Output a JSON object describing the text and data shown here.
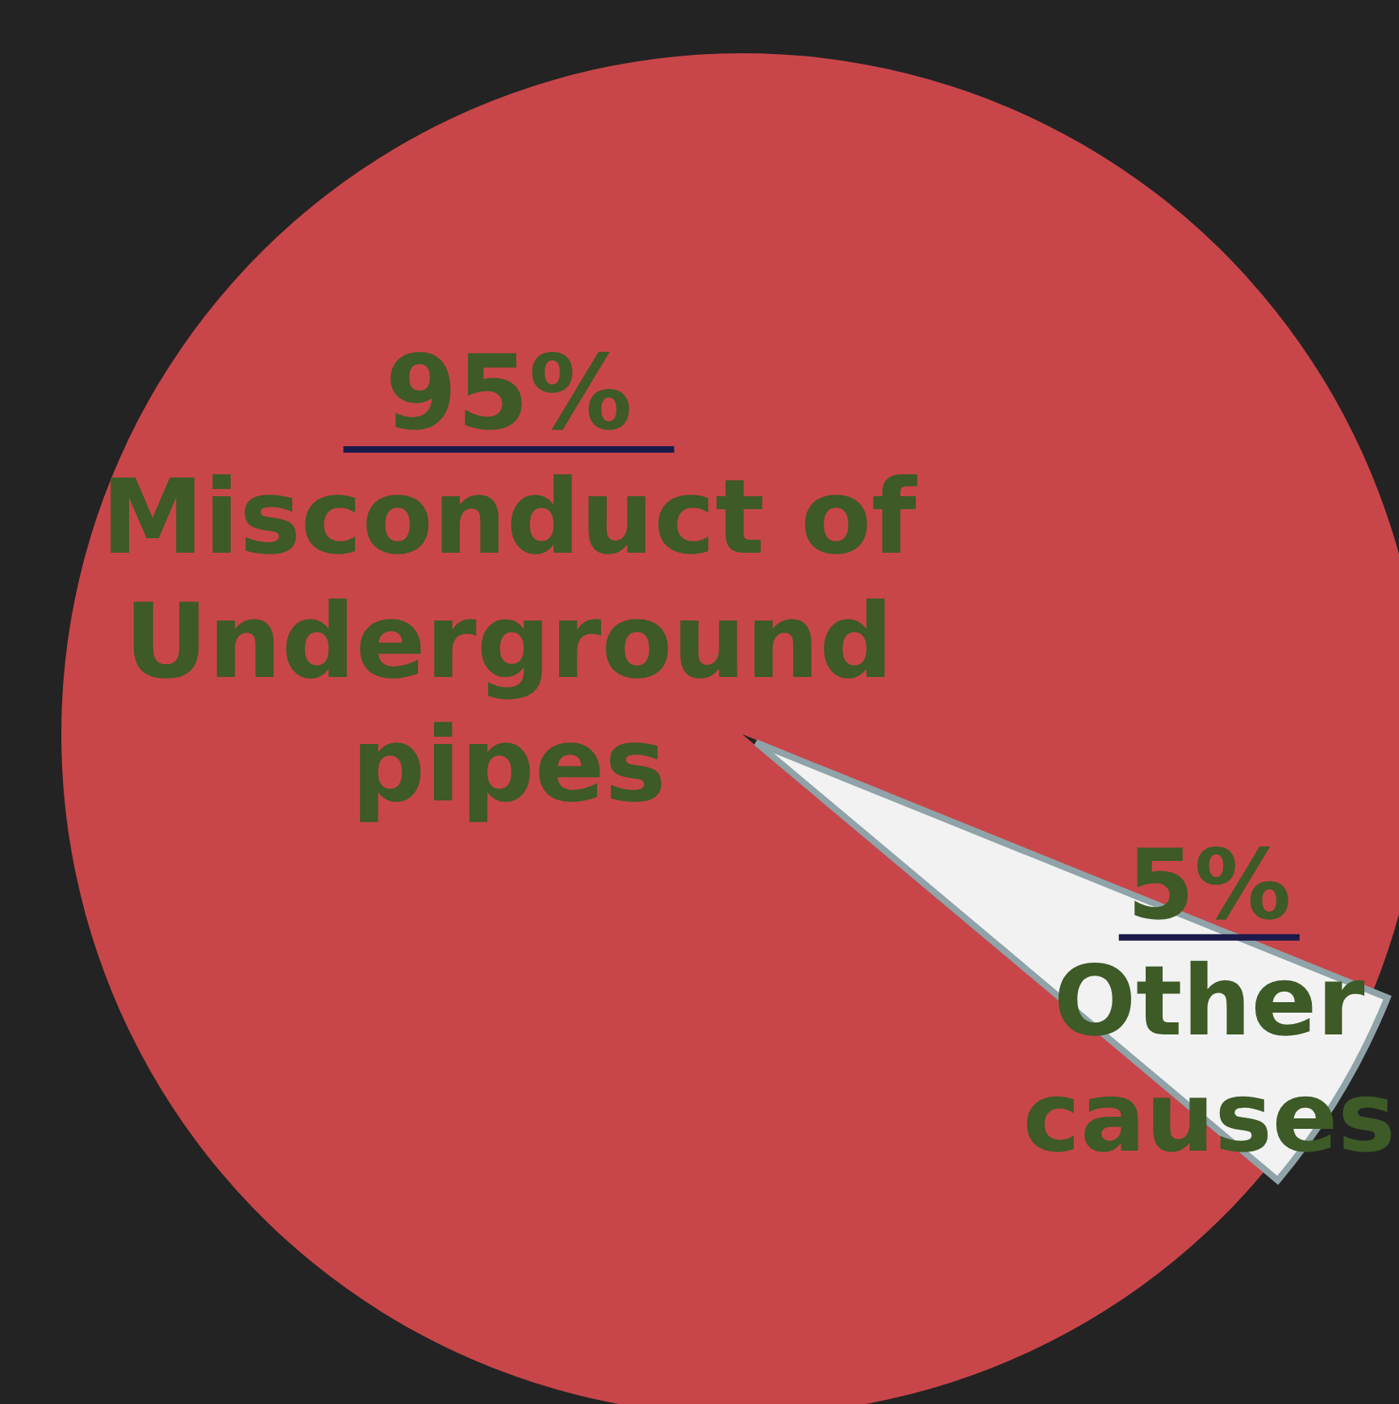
{
  "chart_data": {
    "type": "pie",
    "categories": [
      "Misconduct of Underground pipes",
      "Other causes"
    ],
    "values": [
      95,
      5
    ],
    "value_labels": [
      "95%",
      "5%"
    ],
    "colors": [
      "#c84649",
      "#f2f2f2"
    ]
  }
}
